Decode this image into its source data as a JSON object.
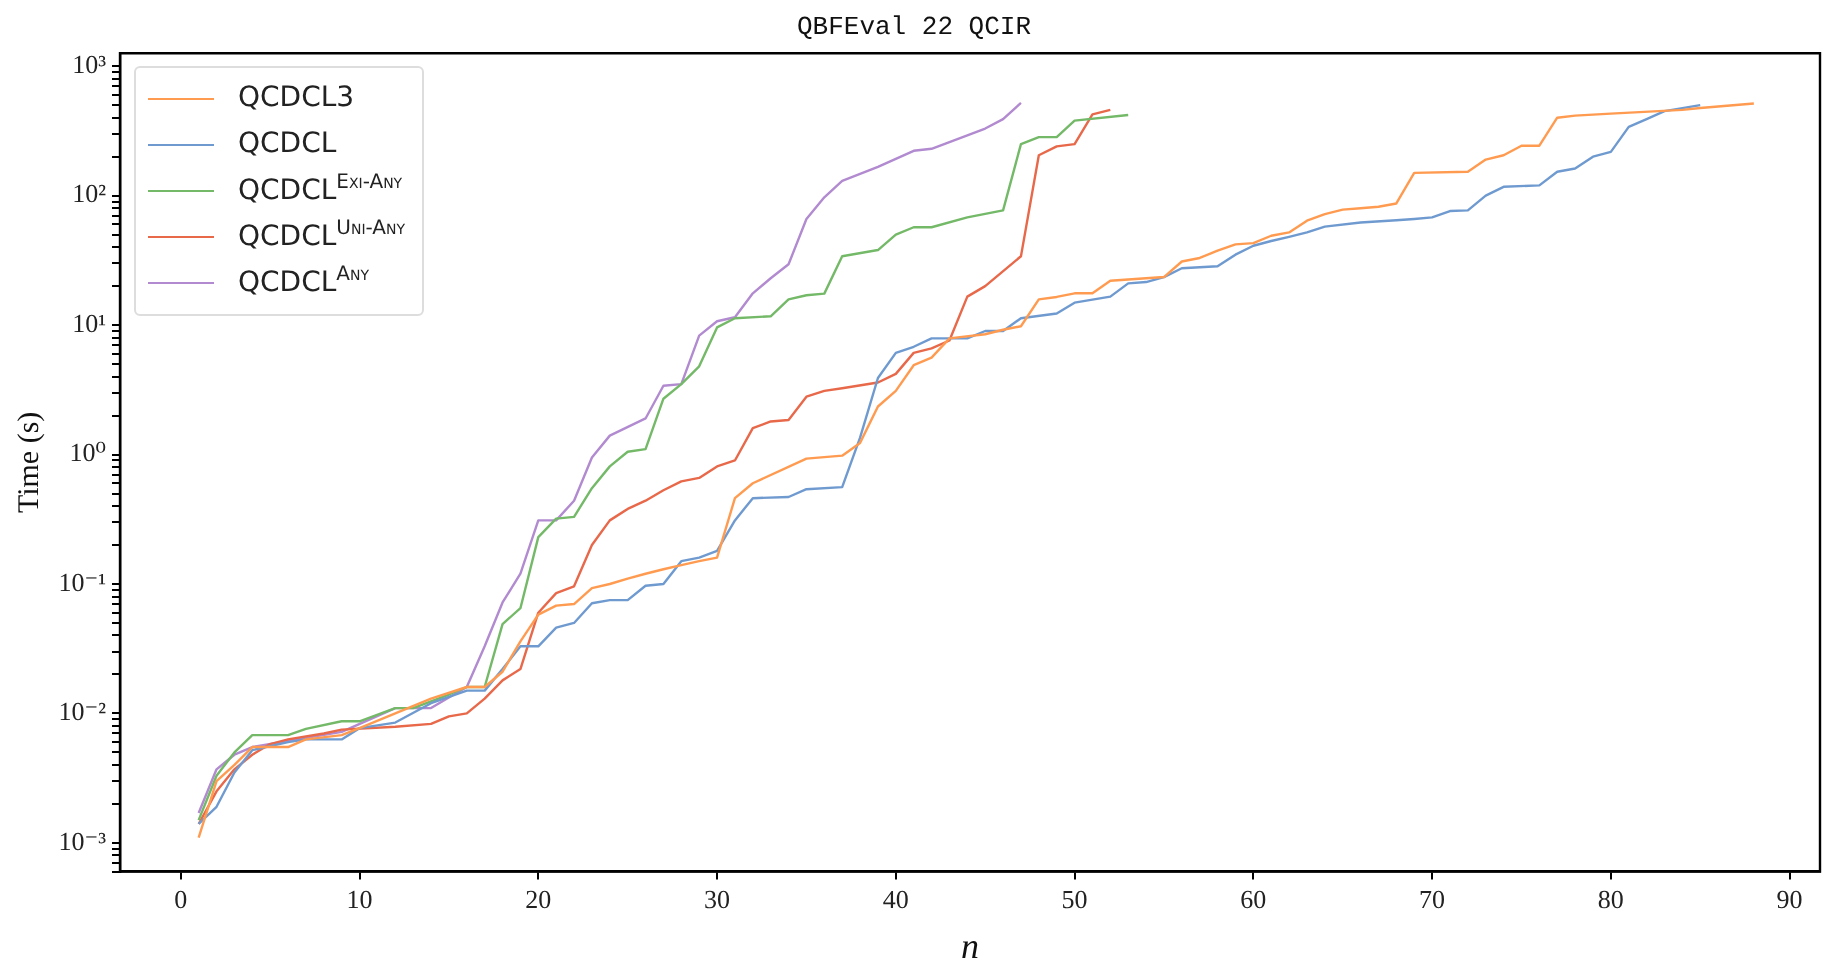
{
  "chart_data": {
    "type": "line",
    "title": "QBFEval 22 QCIR",
    "xlabel": "n",
    "ylabel": "Time (s)",
    "log": "y",
    "grid": false,
    "legend": "top left",
    "marker": "none",
    "line_style": "solid",
    "xlim": [
      -3.4,
      91.7
    ],
    "xticks": [
      0,
      10,
      20,
      30,
      40,
      50,
      60,
      70,
      80,
      90
    ],
    "ylim": [
      0.0006,
      1260
    ],
    "yticks": [
      {
        "value": 0.0006,
        "label": null
      },
      {
        "value": 0.0007,
        "label": null
      },
      {
        "value": 0.0008,
        "label": null
      },
      {
        "value": 0.0009,
        "label": null
      },
      {
        "value": 0.001,
        "label": "10⁻³"
      },
      {
        "value": 0.002,
        "label": null
      },
      {
        "value": 0.003,
        "label": null
      },
      {
        "value": 0.004,
        "label": null
      },
      {
        "value": 0.005,
        "label": null
      },
      {
        "value": 0.006,
        "label": null
      },
      {
        "value": 0.007,
        "label": null
      },
      {
        "value": 0.008,
        "label": null
      },
      {
        "value": 0.009,
        "label": null
      },
      {
        "value": 0.01,
        "label": "10⁻²"
      },
      {
        "value": 0.02,
        "label": null
      },
      {
        "value": 0.03,
        "label": null
      },
      {
        "value": 0.04,
        "label": null
      },
      {
        "value": 0.05,
        "label": null
      },
      {
        "value": 0.06,
        "label": null
      },
      {
        "value": 0.07,
        "label": null
      },
      {
        "value": 0.08,
        "label": null
      },
      {
        "value": 0.09,
        "label": null
      },
      {
        "value": 0.1,
        "label": "10⁻¹"
      },
      {
        "value": 0.2,
        "label": null
      },
      {
        "value": 0.3,
        "label": null
      },
      {
        "value": 0.4,
        "label": null
      },
      {
        "value": 0.5,
        "label": null
      },
      {
        "value": 0.6,
        "label": null
      },
      {
        "value": 0.7,
        "label": null
      },
      {
        "value": 0.8,
        "label": null
      },
      {
        "value": 0.9,
        "label": null
      },
      {
        "value": 1,
        "label": "10⁰"
      },
      {
        "value": 2,
        "label": null
      },
      {
        "value": 3,
        "label": null
      },
      {
        "value": 4,
        "label": null
      },
      {
        "value": 5,
        "label": null
      },
      {
        "value": 6,
        "label": null
      },
      {
        "value": 7,
        "label": null
      },
      {
        "value": 8,
        "label": null
      },
      {
        "value": 9,
        "label": null
      },
      {
        "value": 10,
        "label": "10¹"
      },
      {
        "value": 20,
        "label": null
      },
      {
        "value": 30,
        "label": null
      },
      {
        "value": 40,
        "label": null
      },
      {
        "value": 50,
        "label": null
      },
      {
        "value": 60,
        "label": null
      },
      {
        "value": 70,
        "label": null
      },
      {
        "value": 80,
        "label": null
      },
      {
        "value": 90,
        "label": null
      },
      {
        "value": 100,
        "label": "10²"
      },
      {
        "value": 200,
        "label": null
      },
      {
        "value": 300,
        "label": null
      },
      {
        "value": 400,
        "label": null
      },
      {
        "value": 500,
        "label": null
      },
      {
        "value": 600,
        "label": null
      },
      {
        "value": 700,
        "label": null
      },
      {
        "value": 800,
        "label": null
      },
      {
        "value": 900,
        "label": null
      },
      {
        "value": 1000,
        "label": "10³"
      }
    ],
    "series": [
      {
        "name": "QCDCL3",
        "color": "#ff9b50",
        "x": [
          1,
          2,
          3,
          4,
          6,
          7,
          9,
          10,
          12,
          14,
          16,
          17,
          18,
          19,
          20,
          21,
          22,
          23,
          24,
          25,
          26,
          27,
          28,
          29,
          30,
          31,
          32,
          35,
          37,
          38,
          39,
          40,
          41,
          42,
          43,
          45,
          46,
          47,
          48,
          49,
          50,
          51,
          52,
          53,
          55,
          56,
          57,
          58,
          59,
          60,
          61,
          62,
          63,
          64,
          65,
          66,
          67,
          68,
          69,
          72,
          73,
          74,
          75,
          76,
          77,
          78,
          80,
          84,
          85,
          88
        ],
        "values": [
          0.0011,
          0.003,
          0.004,
          0.0055,
          0.0055,
          0.0063,
          0.0068,
          0.0077,
          0.01,
          0.013,
          0.016,
          0.016,
          0.021,
          0.036,
          0.058,
          0.068,
          0.07,
          0.093,
          0.1,
          0.11,
          0.12,
          0.13,
          0.14,
          0.15,
          0.16,
          0.46,
          0.6,
          0.93,
          0.98,
          1.23,
          2.35,
          3.1,
          4.9,
          5.6,
          7.9,
          8.5,
          9.2,
          9.8,
          15.8,
          16.5,
          17.6,
          17.6,
          22,
          22.5,
          23.5,
          31,
          33,
          37.6,
          42,
          43,
          49,
          52,
          64,
          72,
          78,
          80,
          82,
          87,
          150,
          153,
          190,
          205,
          243,
          243,
          400,
          415,
          430,
          460,
          475,
          515
        ]
      },
      {
        "name": "QCDCL",
        "color": "#6f9ad0",
        "x": [
          1,
          2,
          3,
          4,
          6,
          7,
          9,
          10,
          12,
          14,
          16,
          17,
          18,
          19,
          20,
          21,
          22,
          23,
          24,
          25,
          26,
          27,
          28,
          29,
          30,
          31,
          32,
          34,
          35,
          37,
          38,
          39,
          40,
          41,
          42,
          44,
          45,
          46,
          47,
          49,
          50,
          52,
          53,
          54,
          55,
          56,
          58,
          59,
          60,
          61,
          62,
          63,
          64,
          66,
          68,
          69,
          70,
          71,
          72,
          73,
          74,
          76,
          77,
          78,
          79,
          80,
          81,
          82,
          83,
          85
        ],
        "values": [
          0.0014,
          0.0019,
          0.0035,
          0.0052,
          0.006,
          0.0063,
          0.0063,
          0.0077,
          0.0085,
          0.012,
          0.015,
          0.015,
          0.022,
          0.033,
          0.033,
          0.046,
          0.05,
          0.071,
          0.075,
          0.075,
          0.097,
          0.1,
          0.15,
          0.16,
          0.18,
          0.31,
          0.46,
          0.47,
          0.54,
          0.56,
          1.35,
          3.9,
          6.1,
          6.8,
          7.9,
          7.9,
          9,
          9,
          11.3,
          12.3,
          14.9,
          16.6,
          21,
          21.5,
          23.5,
          27.5,
          28.5,
          35,
          41,
          44.6,
          48,
          52,
          57.6,
          62,
          64.5,
          66,
          68,
          76,
          77,
          100,
          117,
          120,
          153,
          162,
          200,
          218,
          340,
          390,
          450,
          500
        ]
      },
      {
        "name": "QCDCL$^{Exi-Any}$",
        "color": "#74b968",
        "x": [
          1,
          2,
          3,
          4,
          6,
          7,
          9,
          10,
          12,
          13,
          15,
          16,
          17,
          18,
          19,
          20,
          21,
          22,
          23,
          24,
          25,
          26,
          27,
          28,
          29,
          30,
          31,
          33,
          34,
          35,
          36,
          37,
          39,
          40,
          41,
          42,
          44,
          46,
          47,
          48,
          49,
          50,
          53
        ],
        "values": [
          0.0015,
          0.0033,
          0.005,
          0.0068,
          0.0068,
          0.0076,
          0.0087,
          0.0087,
          0.011,
          0.011,
          0.014,
          0.016,
          0.016,
          0.049,
          0.065,
          0.23,
          0.32,
          0.33,
          0.55,
          0.81,
          1.05,
          1.1,
          2.7,
          3.5,
          4.8,
          9.6,
          11.3,
          11.7,
          15.8,
          17,
          17.5,
          34,
          38,
          50,
          57,
          57,
          68,
          77,
          250,
          283,
          283,
          380,
          420
        ]
      },
      {
        "name": "QCDCL$^{Uni-Any}$",
        "color": "#e8684a",
        "x": [
          1,
          2,
          3,
          4,
          5,
          6,
          8,
          9,
          12,
          14,
          15,
          16,
          17,
          18,
          19,
          20,
          21,
          22,
          23,
          24,
          25,
          26,
          27,
          28,
          29,
          30,
          31,
          32,
          33,
          34,
          35,
          36,
          37,
          39,
          40,
          41,
          42,
          43,
          44,
          45,
          47,
          48,
          49,
          50,
          51,
          52
        ],
        "values": [
          0.0014,
          0.0025,
          0.0037,
          0.0048,
          0.0058,
          0.0063,
          0.007,
          0.0075,
          0.0079,
          0.0083,
          0.0095,
          0.01,
          0.013,
          0.018,
          0.022,
          0.06,
          0.085,
          0.096,
          0.2,
          0.31,
          0.38,
          0.44,
          0.53,
          0.62,
          0.66,
          0.81,
          0.9,
          1.6,
          1.8,
          1.85,
          2.8,
          3.1,
          3.25,
          3.6,
          4.2,
          6.1,
          6.6,
          7.6,
          16.6,
          20,
          34,
          205,
          240,
          250,
          425,
          460
        ]
      },
      {
        "name": "QCDCL$^{Any}$",
        "color": "#b18ad0",
        "x": [
          1,
          2,
          3,
          4,
          9,
          12,
          14,
          16,
          17,
          18,
          19,
          20,
          21,
          22,
          23,
          24,
          26,
          27,
          28,
          29,
          30,
          31,
          32,
          33,
          34,
          35,
          36,
          37,
          39,
          41,
          42,
          45,
          46,
          47
        ],
        "values": [
          0.0017,
          0.0037,
          0.0048,
          0.0055,
          0.0072,
          0.011,
          0.011,
          0.016,
          0.033,
          0.072,
          0.12,
          0.31,
          0.31,
          0.44,
          0.95,
          1.4,
          1.9,
          3.4,
          3.5,
          8.3,
          10.7,
          11.5,
          17.6,
          23,
          29.5,
          66,
          97,
          130,
          167,
          222,
          230,
          330,
          390,
          520
        ]
      }
    ]
  }
}
